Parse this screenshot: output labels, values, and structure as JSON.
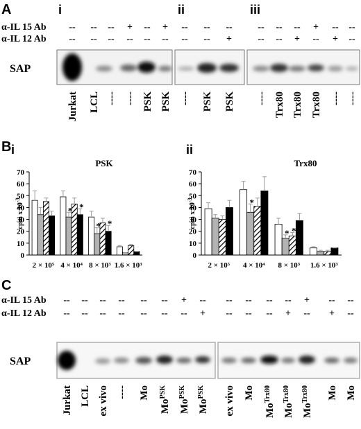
{
  "panel_a": {
    "label": "A",
    "sections": [
      "i",
      "ii",
      "iii"
    ],
    "row_labels": [
      "α-IL 15 Ab",
      "α-IL 12 Ab"
    ],
    "rows": [
      [
        "--",
        "--",
        "--",
        "+",
        "--",
        "+",
        "--",
        "--",
        "--",
        "--",
        "--",
        "--",
        "+",
        "--",
        "--"
      ],
      [
        "--",
        "--",
        "--",
        "--",
        "--",
        "--",
        "--",
        "--",
        "+",
        "--",
        "--",
        "+",
        "--",
        "+",
        "--"
      ]
    ],
    "blot_label": "SAP",
    "lanes": [
      "Jurkat",
      "LCL",
      "----",
      "----",
      "PSK",
      "PSK",
      "----",
      "PSK",
      "PSK",
      "----",
      "Trx80",
      "Trx80",
      "Trx80",
      "----",
      "----"
    ]
  },
  "panel_b": {
    "label": "B",
    "sections": [
      "i",
      "ii"
    ]
  },
  "chart_data": [
    {
      "type": "bar",
      "title": "PSK",
      "y_label": "cpm x 10",
      "y_label_sup": "-3",
      "categories": [
        "2 × 10⁵",
        "4 × 10⁴",
        "8 × 10³",
        "1.6 × 10³"
      ],
      "ylim": [
        0,
        70
      ],
      "yticks": [
        0,
        10,
        20,
        30,
        40,
        50,
        60,
        70
      ],
      "series": [
        {
          "color": "#ffffff",
          "values": [
            46,
            49,
            32,
            7
          ],
          "errors": [
            8,
            5,
            5,
            1
          ],
          "stars": [
            null,
            null,
            null,
            null
          ]
        },
        {
          "color": "#b3b3b3",
          "values": [
            34,
            32,
            18,
            2
          ],
          "errors": [
            6,
            4,
            5,
            0
          ],
          "stars": [
            null,
            "*",
            "*",
            null
          ]
        },
        {
          "color": "#000000",
          "hatch": true,
          "values": [
            45,
            43,
            27,
            8
          ],
          "errors": [
            3,
            5,
            4,
            1
          ],
          "stars": [
            null,
            null,
            null,
            null
          ]
        },
        {
          "color": "#000000",
          "values": [
            33,
            34,
            20,
            3
          ],
          "errors": [
            4,
            5,
            5,
            0
          ],
          "stars": [
            null,
            "*",
            "*",
            null
          ]
        }
      ]
    },
    {
      "type": "bar",
      "title": "Trx80",
      "y_label": "cpm x 10",
      "y_label_sup": "-3",
      "categories": [
        "2 × 10⁵",
        "4 × 10⁴",
        "8 × 10³",
        "1.6 × 10³"
      ],
      "ylim": [
        0,
        70
      ],
      "yticks": [
        0,
        10,
        20,
        30,
        40,
        50,
        60,
        70
      ],
      "series": [
        {
          "color": "#ffffff",
          "values": [
            39,
            55,
            26,
            6
          ],
          "errors": [
            5,
            7,
            5,
            1
          ],
          "stars": [
            null,
            null,
            null,
            null
          ]
        },
        {
          "color": "#b3b3b3",
          "values": [
            31,
            36,
            14,
            3
          ],
          "errors": [
            3,
            7,
            3,
            1
          ],
          "stars": [
            null,
            "*",
            "*",
            null
          ]
        },
        {
          "color": "#000000",
          "hatch": true,
          "values": [
            30,
            41,
            16,
            3
          ],
          "errors": [
            3,
            7,
            3,
            1
          ],
          "stars": [
            null,
            null,
            "*",
            null
          ]
        },
        {
          "color": "#000000",
          "values": [
            40,
            54,
            29,
            6
          ],
          "errors": [
            6,
            12,
            6,
            0
          ],
          "stars": [
            null,
            null,
            null,
            null
          ]
        }
      ]
    }
  ],
  "panel_c": {
    "label": "C",
    "row_labels": [
      "α-IL 15 Ab",
      "α-IL 12 Ab"
    ],
    "rows": [
      [
        "--",
        "--",
        "--",
        "--",
        "--",
        "--",
        "+",
        "--",
        "--",
        "--",
        "--",
        "--",
        "+",
        "--",
        "--"
      ],
      [
        "--",
        "--",
        "--",
        "--",
        "--",
        "--",
        "--",
        "+",
        "--",
        "--",
        "--",
        "+",
        "--",
        "+",
        "--"
      ]
    ],
    "blot_label": "SAP",
    "lanes": [
      {
        "text": "Jurkat"
      },
      {
        "text": "LCL"
      },
      {
        "text": "ex vivo"
      },
      {
        "text": "----"
      },
      {
        "text": "Mo"
      },
      {
        "text": "Mo",
        "sup": "PSK"
      },
      {
        "text": "Mo",
        "sup": "PSK"
      },
      {
        "text": "Mo",
        "sup": "PSK"
      },
      {
        "text": "ex vivo"
      },
      {
        "text": "Mo"
      },
      {
        "text": "Mo",
        "sup": "Trx80"
      },
      {
        "text": "Mo",
        "sup": "Trx80"
      },
      {
        "text": "Mo",
        "sup": "Trx80"
      },
      {
        "text": "Mo"
      },
      {
        "text": "Mo"
      }
    ]
  }
}
